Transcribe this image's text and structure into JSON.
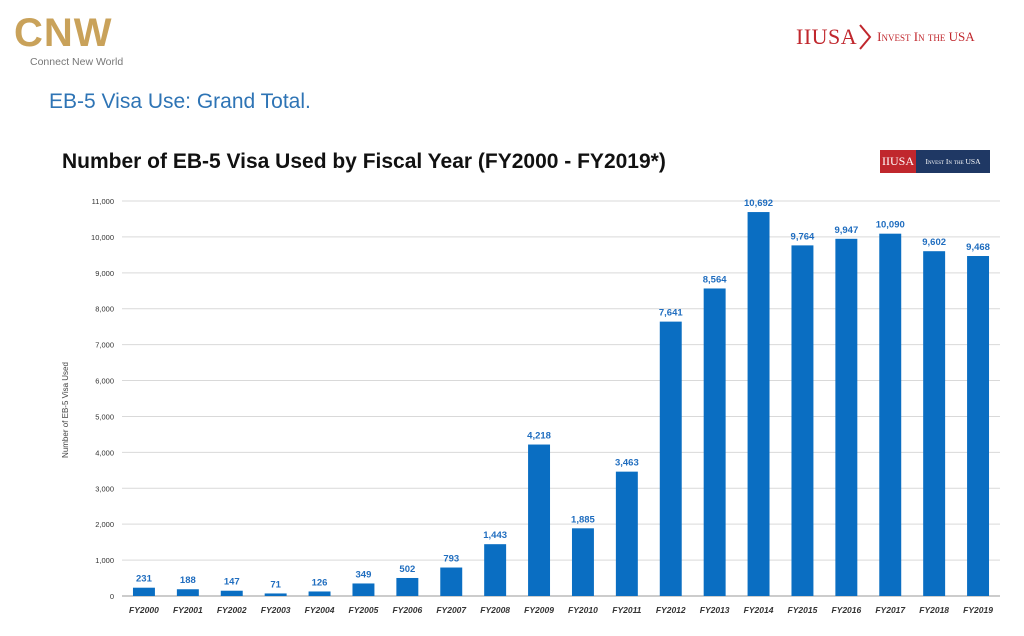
{
  "header": {
    "brand_left": "CNW",
    "brand_left_tagline": "Connect New World",
    "brand_right_mark": "IIUSA",
    "brand_right_tagline": "Invest In the USA"
  },
  "slide_title": "EB-5 Visa Use: Grand Total.",
  "badge": {
    "mark": "IIUSA",
    "tagline": "Invest In the USA"
  },
  "colors": {
    "bar": "#0a6ec2",
    "label": "#1f6dbf",
    "slide_title": "#2e74b5",
    "brand_red": "#c0272d",
    "brand_gold": "#c9a25a"
  },
  "chart_data": {
    "type": "bar",
    "title": "Number of EB-5 Visa Used by Fiscal Year (FY2000 - FY2019*)",
    "xlabel": "",
    "ylabel": "Number of EB-5 Visa Used",
    "ylim": [
      0,
      11000
    ],
    "yticks": [
      "0",
      "1,000",
      "2,000",
      "3,000",
      "4,000",
      "5,000",
      "6,000",
      "7,000",
      "8,000",
      "9,000",
      "10,000",
      "11,000"
    ],
    "grid": true,
    "categories": [
      "FY2000",
      "FY2001",
      "FY2002",
      "FY2003",
      "FY2004",
      "FY2005",
      "FY2006",
      "FY2007",
      "FY2008",
      "FY2009",
      "FY2010",
      "FY2011",
      "FY2012",
      "FY2013",
      "FY2014",
      "FY2015",
      "FY2016",
      "FY2017",
      "FY2018",
      "FY2019"
    ],
    "values": [
      231,
      188,
      147,
      71,
      126,
      349,
      502,
      793,
      1443,
      4218,
      1885,
      3463,
      7641,
      8564,
      10692,
      9764,
      9947,
      10090,
      9602,
      9468
    ],
    "value_labels": [
      "231",
      "188",
      "147",
      "71",
      "126",
      "349",
      "502",
      "793",
      "1,443",
      "4,218",
      "1,885",
      "3,463",
      "7,641",
      "8,564",
      "10,692",
      "9,764",
      "9,947",
      "10,090",
      "9,602",
      "9,468"
    ]
  }
}
